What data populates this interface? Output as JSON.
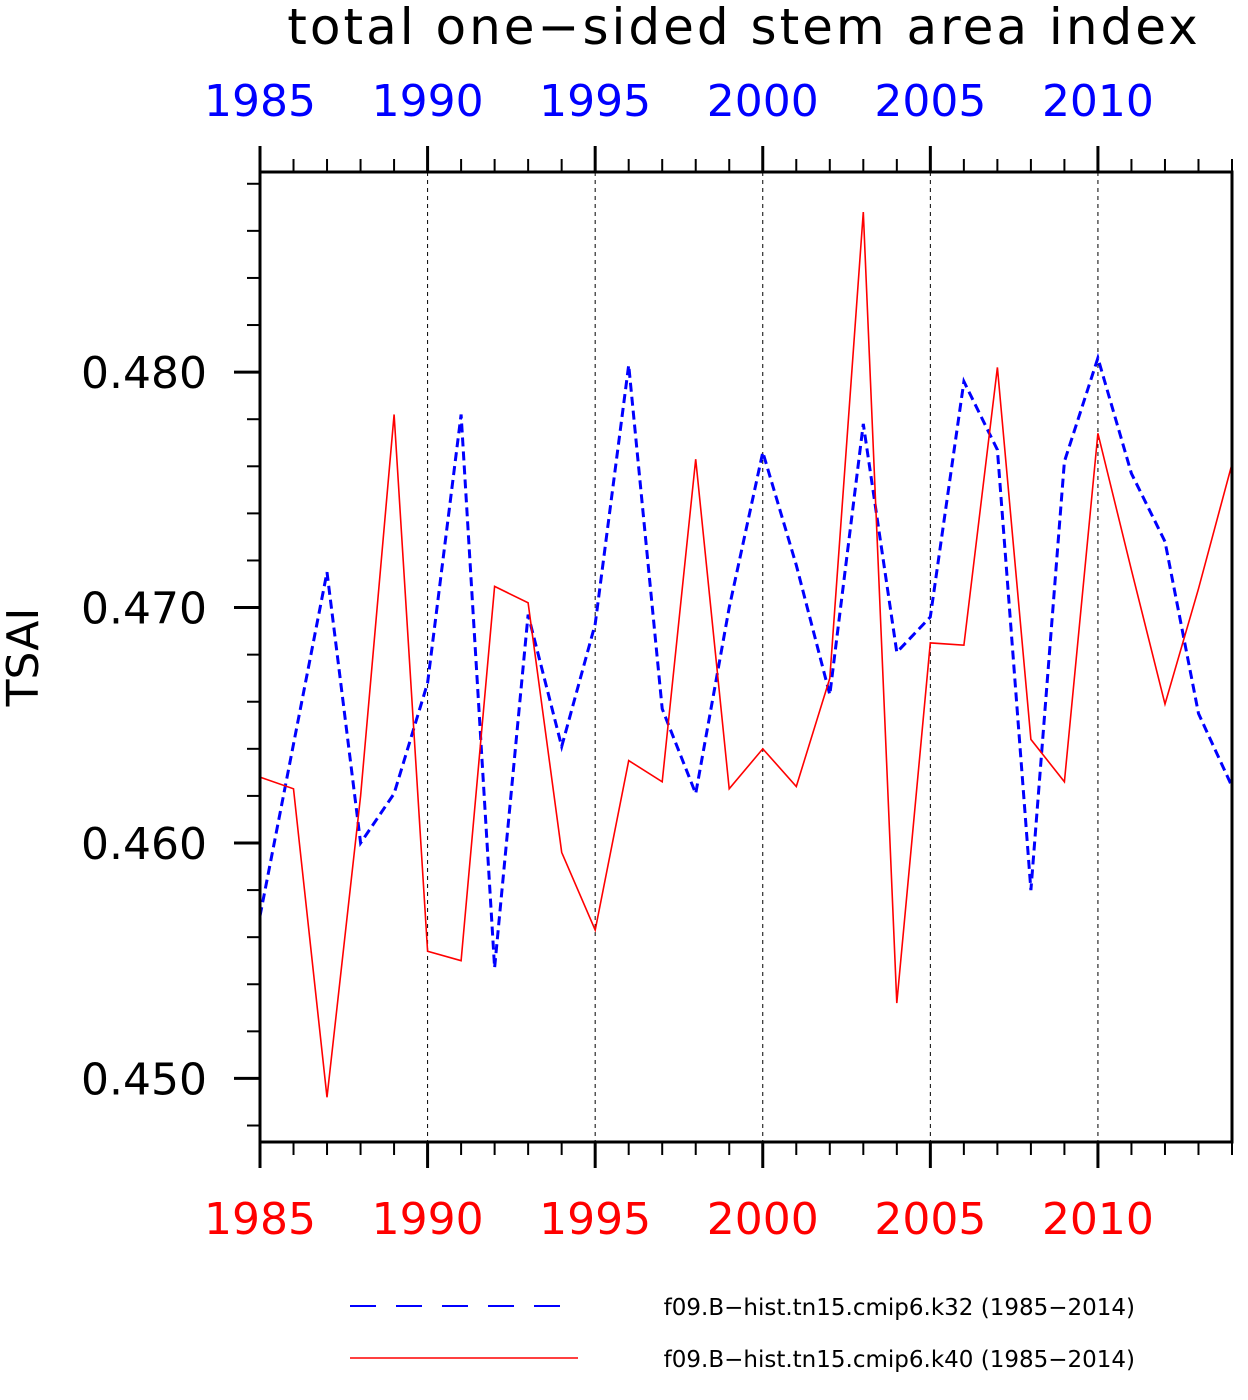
{
  "chart_data": {
    "type": "line",
    "title": "total one−sided stem area index",
    "xlabel": "",
    "ylabel": "TSAI",
    "xlim": [
      1985,
      2014
    ],
    "ylim": [
      0.4473,
      0.4885
    ],
    "x_ticks": [
      1985,
      1990,
      1995,
      2000,
      2005,
      2010
    ],
    "x_tick_labels": [
      "1985",
      "1990",
      "1995",
      "2000",
      "2005",
      "2010"
    ],
    "y_ticks": [
      0.45,
      0.46,
      0.47,
      0.48
    ],
    "y_tick_labels": [
      "0.450",
      "0.460",
      "0.470",
      "0.480"
    ],
    "grid": "vertical dashed at major x ticks",
    "legend_position": "bottom",
    "x": [
      1985,
      1986,
      1987,
      1988,
      1989,
      1990,
      1991,
      1992,
      1993,
      1994,
      1995,
      1996,
      1997,
      1998,
      1999,
      2000,
      2001,
      2002,
      2003,
      2004,
      2005,
      2006,
      2007,
      2008,
      2009,
      2010,
      2011,
      2012,
      2013,
      2014
    ],
    "series": [
      {
        "name": "f09.B−hist.tn15.cmip6.k32 (1985−2014)",
        "color": "#0000ff",
        "style": "dashed",
        "values": [
          0.4569,
          0.4642,
          0.4715,
          0.46,
          0.4621,
          0.4668,
          0.4782,
          0.4547,
          0.4697,
          0.4641,
          0.4693,
          0.4803,
          0.4657,
          0.4621,
          0.47,
          0.4766,
          0.4718,
          0.4663,
          0.4778,
          0.4681,
          0.4696,
          0.4796,
          0.4767,
          0.458,
          0.4762,
          0.4806,
          0.4757,
          0.4728,
          0.4655,
          0.4624
        ]
      },
      {
        "name": "f09.B−hist.tn15.cmip6.k40 (1985−2014)",
        "color": "#ff0000",
        "style": "solid",
        "values": [
          0.4628,
          0.4623,
          0.4492,
          0.462,
          0.4782,
          0.4554,
          0.455,
          0.4709,
          0.4702,
          0.4596,
          0.4563,
          0.4635,
          0.4626,
          0.4763,
          0.4623,
          0.464,
          0.4624,
          0.467,
          0.4868,
          0.4532,
          0.4685,
          0.4684,
          0.4802,
          0.4644,
          0.4626,
          0.4774,
          0.4716,
          0.4659,
          0.4708,
          0.4761
        ]
      }
    ]
  }
}
